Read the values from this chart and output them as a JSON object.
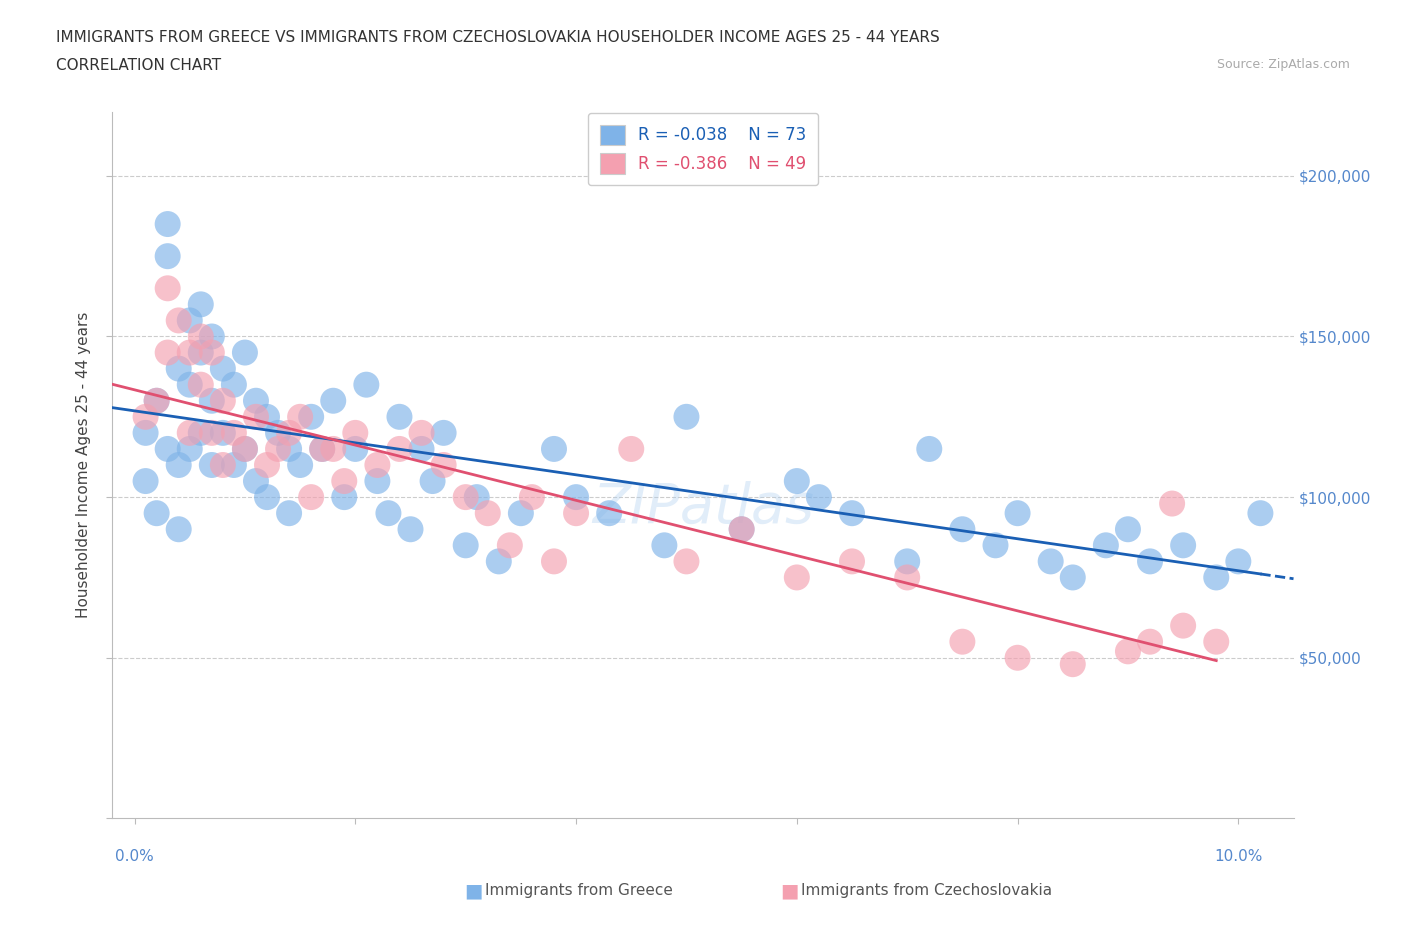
{
  "title": "IMMIGRANTS FROM GREECE VS IMMIGRANTS FROM CZECHOSLOVAKIA HOUSEHOLDER INCOME AGES 25 - 44 YEARS",
  "subtitle": "CORRELATION CHART",
  "source": "Source: ZipAtlas.com",
  "ylabel": "Householder Income Ages 25 - 44 years",
  "watermark": "ZIPatlas",
  "greece_r": "-0.038",
  "greece_n": "73",
  "czech_r": "-0.386",
  "czech_n": "49",
  "xlim": [
    -0.002,
    0.105
  ],
  "ylim": [
    0,
    220000
  ],
  "blue_color": "#7fb3e8",
  "blue_line_color": "#1a5fb4",
  "pink_color": "#f4a0b0",
  "pink_line_color": "#e05070",
  "axis_color": "#5588cc",
  "grid_color": "#cccccc",
  "greece_points_x": [
    0.001,
    0.001,
    0.002,
    0.002,
    0.003,
    0.003,
    0.003,
    0.004,
    0.004,
    0.004,
    0.005,
    0.005,
    0.005,
    0.006,
    0.006,
    0.006,
    0.007,
    0.007,
    0.007,
    0.008,
    0.008,
    0.009,
    0.009,
    0.01,
    0.01,
    0.011,
    0.011,
    0.012,
    0.012,
    0.013,
    0.014,
    0.014,
    0.015,
    0.016,
    0.017,
    0.018,
    0.019,
    0.02,
    0.021,
    0.022,
    0.023,
    0.024,
    0.025,
    0.026,
    0.027,
    0.028,
    0.03,
    0.031,
    0.033,
    0.035,
    0.038,
    0.04,
    0.043,
    0.048,
    0.05,
    0.055,
    0.06,
    0.062,
    0.065,
    0.07,
    0.072,
    0.075,
    0.078,
    0.08,
    0.083,
    0.085,
    0.088,
    0.09,
    0.092,
    0.095,
    0.098,
    0.1,
    0.102
  ],
  "greece_points_y": [
    120000,
    105000,
    130000,
    95000,
    185000,
    175000,
    115000,
    140000,
    110000,
    90000,
    155000,
    135000,
    115000,
    160000,
    145000,
    120000,
    150000,
    130000,
    110000,
    140000,
    120000,
    135000,
    110000,
    145000,
    115000,
    130000,
    105000,
    125000,
    100000,
    120000,
    115000,
    95000,
    110000,
    125000,
    115000,
    130000,
    100000,
    115000,
    135000,
    105000,
    95000,
    125000,
    90000,
    115000,
    105000,
    120000,
    85000,
    100000,
    80000,
    95000,
    115000,
    100000,
    95000,
    85000,
    125000,
    90000,
    105000,
    100000,
    95000,
    80000,
    115000,
    90000,
    85000,
    95000,
    80000,
    75000,
    85000,
    90000,
    80000,
    85000,
    75000,
    80000,
    95000
  ],
  "czech_points_x": [
    0.001,
    0.002,
    0.003,
    0.003,
    0.004,
    0.005,
    0.005,
    0.006,
    0.006,
    0.007,
    0.007,
    0.008,
    0.008,
    0.009,
    0.01,
    0.011,
    0.012,
    0.013,
    0.014,
    0.015,
    0.016,
    0.017,
    0.018,
    0.019,
    0.02,
    0.022,
    0.024,
    0.026,
    0.028,
    0.03,
    0.032,
    0.034,
    0.036,
    0.038,
    0.04,
    0.045,
    0.05,
    0.055,
    0.06,
    0.065,
    0.07,
    0.075,
    0.08,
    0.085,
    0.09,
    0.092,
    0.094,
    0.095,
    0.098
  ],
  "czech_points_y": [
    125000,
    130000,
    165000,
    145000,
    155000,
    145000,
    120000,
    150000,
    135000,
    145000,
    120000,
    130000,
    110000,
    120000,
    115000,
    125000,
    110000,
    115000,
    120000,
    125000,
    100000,
    115000,
    115000,
    105000,
    120000,
    110000,
    115000,
    120000,
    110000,
    100000,
    95000,
    85000,
    100000,
    80000,
    95000,
    115000,
    80000,
    90000,
    75000,
    80000,
    75000,
    55000,
    50000,
    48000,
    52000,
    55000,
    98000,
    60000,
    55000
  ]
}
